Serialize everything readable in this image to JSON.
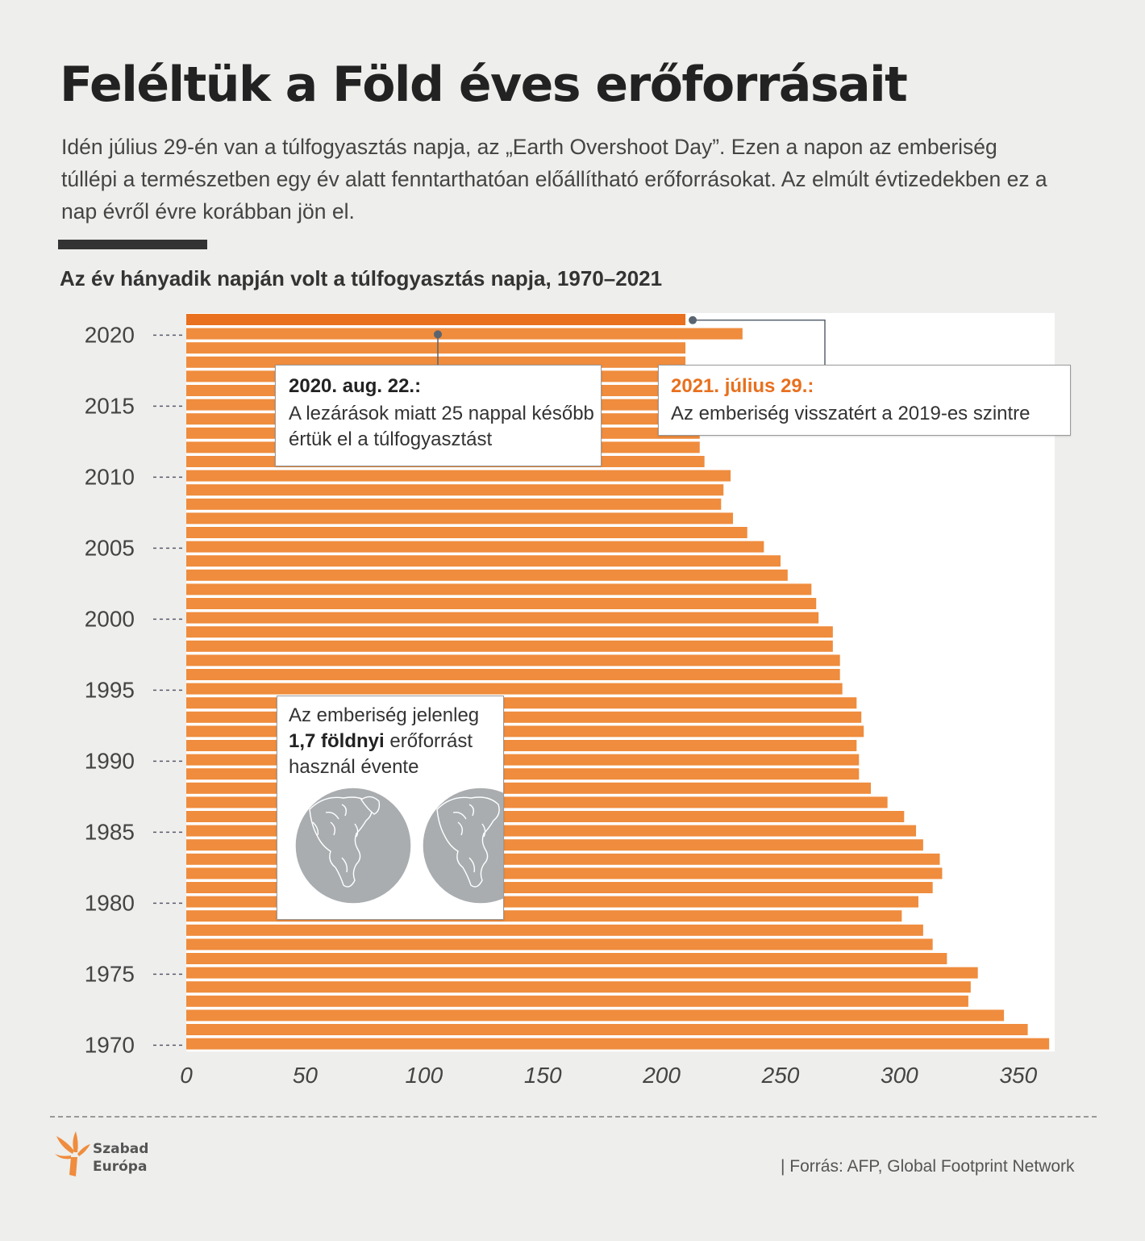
{
  "title": "Feléltük a Föld éves erőforrásait",
  "intro": "Idén július 29-én van a túlfogyasztás napja, az „Earth Overshoot Day”. Ezen a napon az emberiség túllépi a természetben egy év alatt fenntarthatóan előállítható erőforrásokat. Az elmúlt évtizedekben ez a nap évről évre korábban jön el.",
  "subtitle": "Az év hányadik napján volt a túlfogyasztás napja, 1970–2021",
  "callouts": {
    "lockdown": {
      "head": "2020. aug. 22.:",
      "body": "A lezárások miatt 25 nappal később értük el a túlfogyasztást"
    },
    "current": {
      "head": "2021. július 29.:",
      "body": "Az emberiség visszatért a 2019-es szintre"
    },
    "earths": {
      "line1": "Az emberiség jelenleg",
      "bold": "1,7 földnyi",
      "line2a": " erőforrást",
      "line3": "használ évente"
    }
  },
  "footer": {
    "logo_line1": "Szabad",
    "logo_line2": "Európa",
    "source": "| Forrás: AFP, Global Footprint Network"
  },
  "colors": {
    "bar": "#ef8c3d",
    "highlight_bar": "#e8701e",
    "accent_text": "#e8701e",
    "globe": "#a9adb0"
  },
  "icons": [
    "flame-logo-icon",
    "globe-icon"
  ],
  "chart_data": {
    "type": "bar",
    "orientation": "horizontal",
    "title": "Az év hányadik napján volt a túlfogyasztás napja, 1970–2021",
    "xlabel": "",
    "ylabel": "",
    "xlim": [
      0,
      365
    ],
    "x_ticks": [
      "0",
      "50",
      "100",
      "150",
      "200",
      "250",
      "300",
      "350"
    ],
    "y_ticks": [
      "2020",
      "2015",
      "2010",
      "2005",
      "2000",
      "1995",
      "1990",
      "1985",
      "1980",
      "1975",
      "1970"
    ],
    "grid": false,
    "categories": [
      1970,
      1971,
      1972,
      1973,
      1974,
      1975,
      1976,
      1977,
      1978,
      1979,
      1980,
      1981,
      1982,
      1983,
      1984,
      1985,
      1986,
      1987,
      1988,
      1989,
      1990,
      1991,
      1992,
      1993,
      1994,
      1995,
      1996,
      1997,
      1998,
      1999,
      2000,
      2001,
      2002,
      2003,
      2004,
      2005,
      2006,
      2007,
      2008,
      2009,
      2010,
      2011,
      2012,
      2013,
      2014,
      2015,
      2016,
      2017,
      2018,
      2019,
      2020,
      2021
    ],
    "values": [
      363,
      354,
      344,
      329,
      330,
      333,
      320,
      314,
      310,
      301,
      308,
      314,
      318,
      317,
      310,
      307,
      302,
      295,
      288,
      283,
      283,
      282,
      285,
      284,
      282,
      276,
      275,
      275,
      272,
      272,
      266,
      265,
      263,
      253,
      250,
      243,
      236,
      230,
      225,
      226,
      229,
      218,
      216,
      216,
      220,
      220,
      219,
      214,
      210,
      210,
      234,
      210
    ],
    "highlight": {
      "category": 2021,
      "value": 210
    }
  }
}
